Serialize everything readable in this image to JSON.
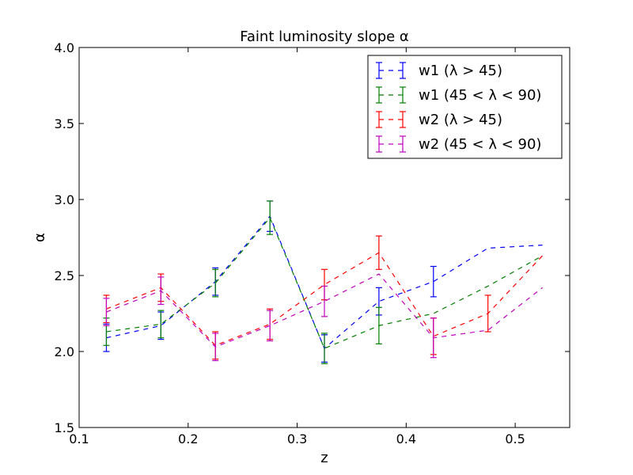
{
  "chart_data": {
    "type": "line",
    "title": "Faint luminosity slope α",
    "xlabel": "z",
    "ylabel": "α",
    "xlim": [
      0.1,
      0.55
    ],
    "ylim": [
      1.5,
      4.0
    ],
    "xticks": [
      "0.1",
      "0.2",
      "0.3",
      "0.4",
      "0.5"
    ],
    "yticks": [
      "1.5",
      "2.0",
      "2.5",
      "3.0",
      "3.5",
      "4.0"
    ],
    "grid": false,
    "legend_position": "top-right",
    "x": [
      0.125,
      0.175,
      0.225,
      0.275,
      0.325,
      0.375,
      0.425,
      0.475,
      0.525
    ],
    "series": [
      {
        "name": "w1 (λ > 45)",
        "color": "#0000ff",
        "values": [
          2.09,
          2.17,
          2.46,
          2.89,
          2.02,
          2.33,
          2.46,
          2.68,
          2.7
        ],
        "errors": [
          0.09,
          0.09,
          0.09,
          0.1,
          0.09,
          0.09,
          0.1,
          0.0,
          0.0
        ]
      },
      {
        "name": "w1 (45 < λ < 90)",
        "color": "#008000",
        "values": [
          2.13,
          2.18,
          2.45,
          2.88,
          2.02,
          2.17,
          2.25,
          2.43,
          2.63
        ],
        "errors": [
          0.09,
          0.09,
          0.09,
          0.11,
          0.1,
          0.12,
          0.0,
          0.0,
          0.0
        ]
      },
      {
        "name": "w2 (λ > 45)",
        "color": "#ff0000",
        "values": [
          2.28,
          2.42,
          2.04,
          2.18,
          2.44,
          2.65,
          2.1,
          2.25,
          2.63
        ],
        "errors": [
          0.09,
          0.09,
          0.09,
          0.1,
          0.1,
          0.11,
          0.12,
          0.12,
          0.0
        ]
      },
      {
        "name": "w2 (45 < λ < 90)",
        "color": "#bf00bf",
        "values": [
          2.26,
          2.4,
          2.03,
          2.17,
          2.33,
          2.51,
          2.09,
          2.14,
          2.42
        ],
        "errors": [
          0.09,
          0.09,
          0.09,
          0.1,
          0.1,
          0.0,
          0.13,
          0.0,
          0.0
        ]
      }
    ]
  }
}
